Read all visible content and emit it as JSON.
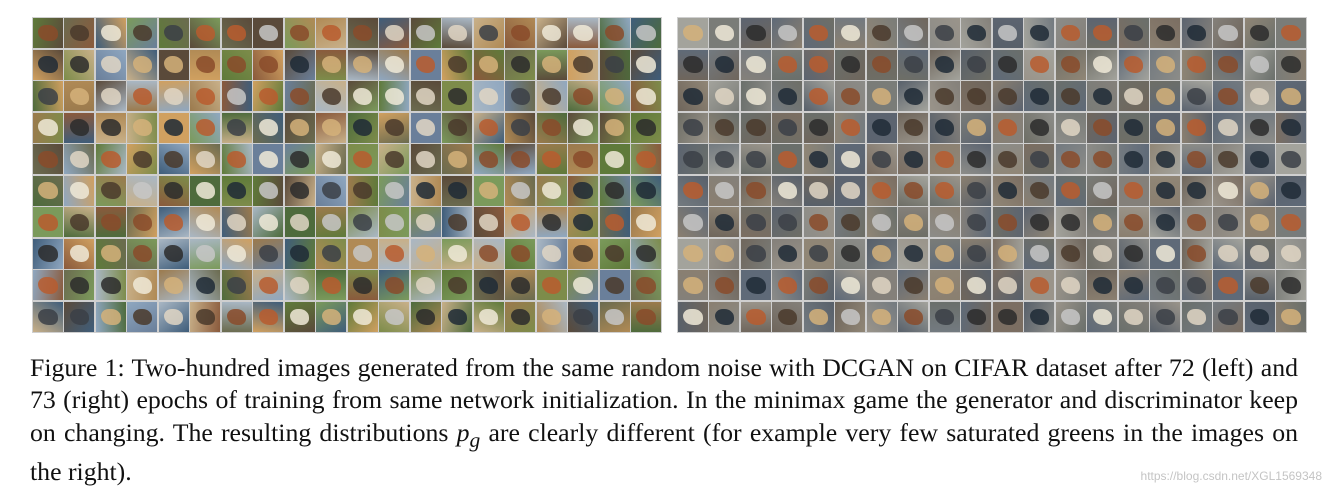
{
  "figure": {
    "panels": [
      {
        "name": "left",
        "rows": 10,
        "cols": 20,
        "tone": "saturated"
      },
      {
        "name": "right",
        "rows": 10,
        "cols": 20,
        "tone": "muted"
      }
    ],
    "caption": {
      "label": "Figure 1:",
      "text_before_math": "Two-hundred images generated from the same random noise with DCGAN on CIFAR dataset after 72 (left) and 73 (right) epochs of training from same network initialization.  In the minimax game the generator and discriminator keep on changing. The resulting distributions",
      "math": "p",
      "math_sub": "g",
      "text_after_math": "are clearly different (for example very few saturated greens in the images on the right)."
    }
  },
  "watermark": "https://blog.csdn.net/XGL1569348"
}
